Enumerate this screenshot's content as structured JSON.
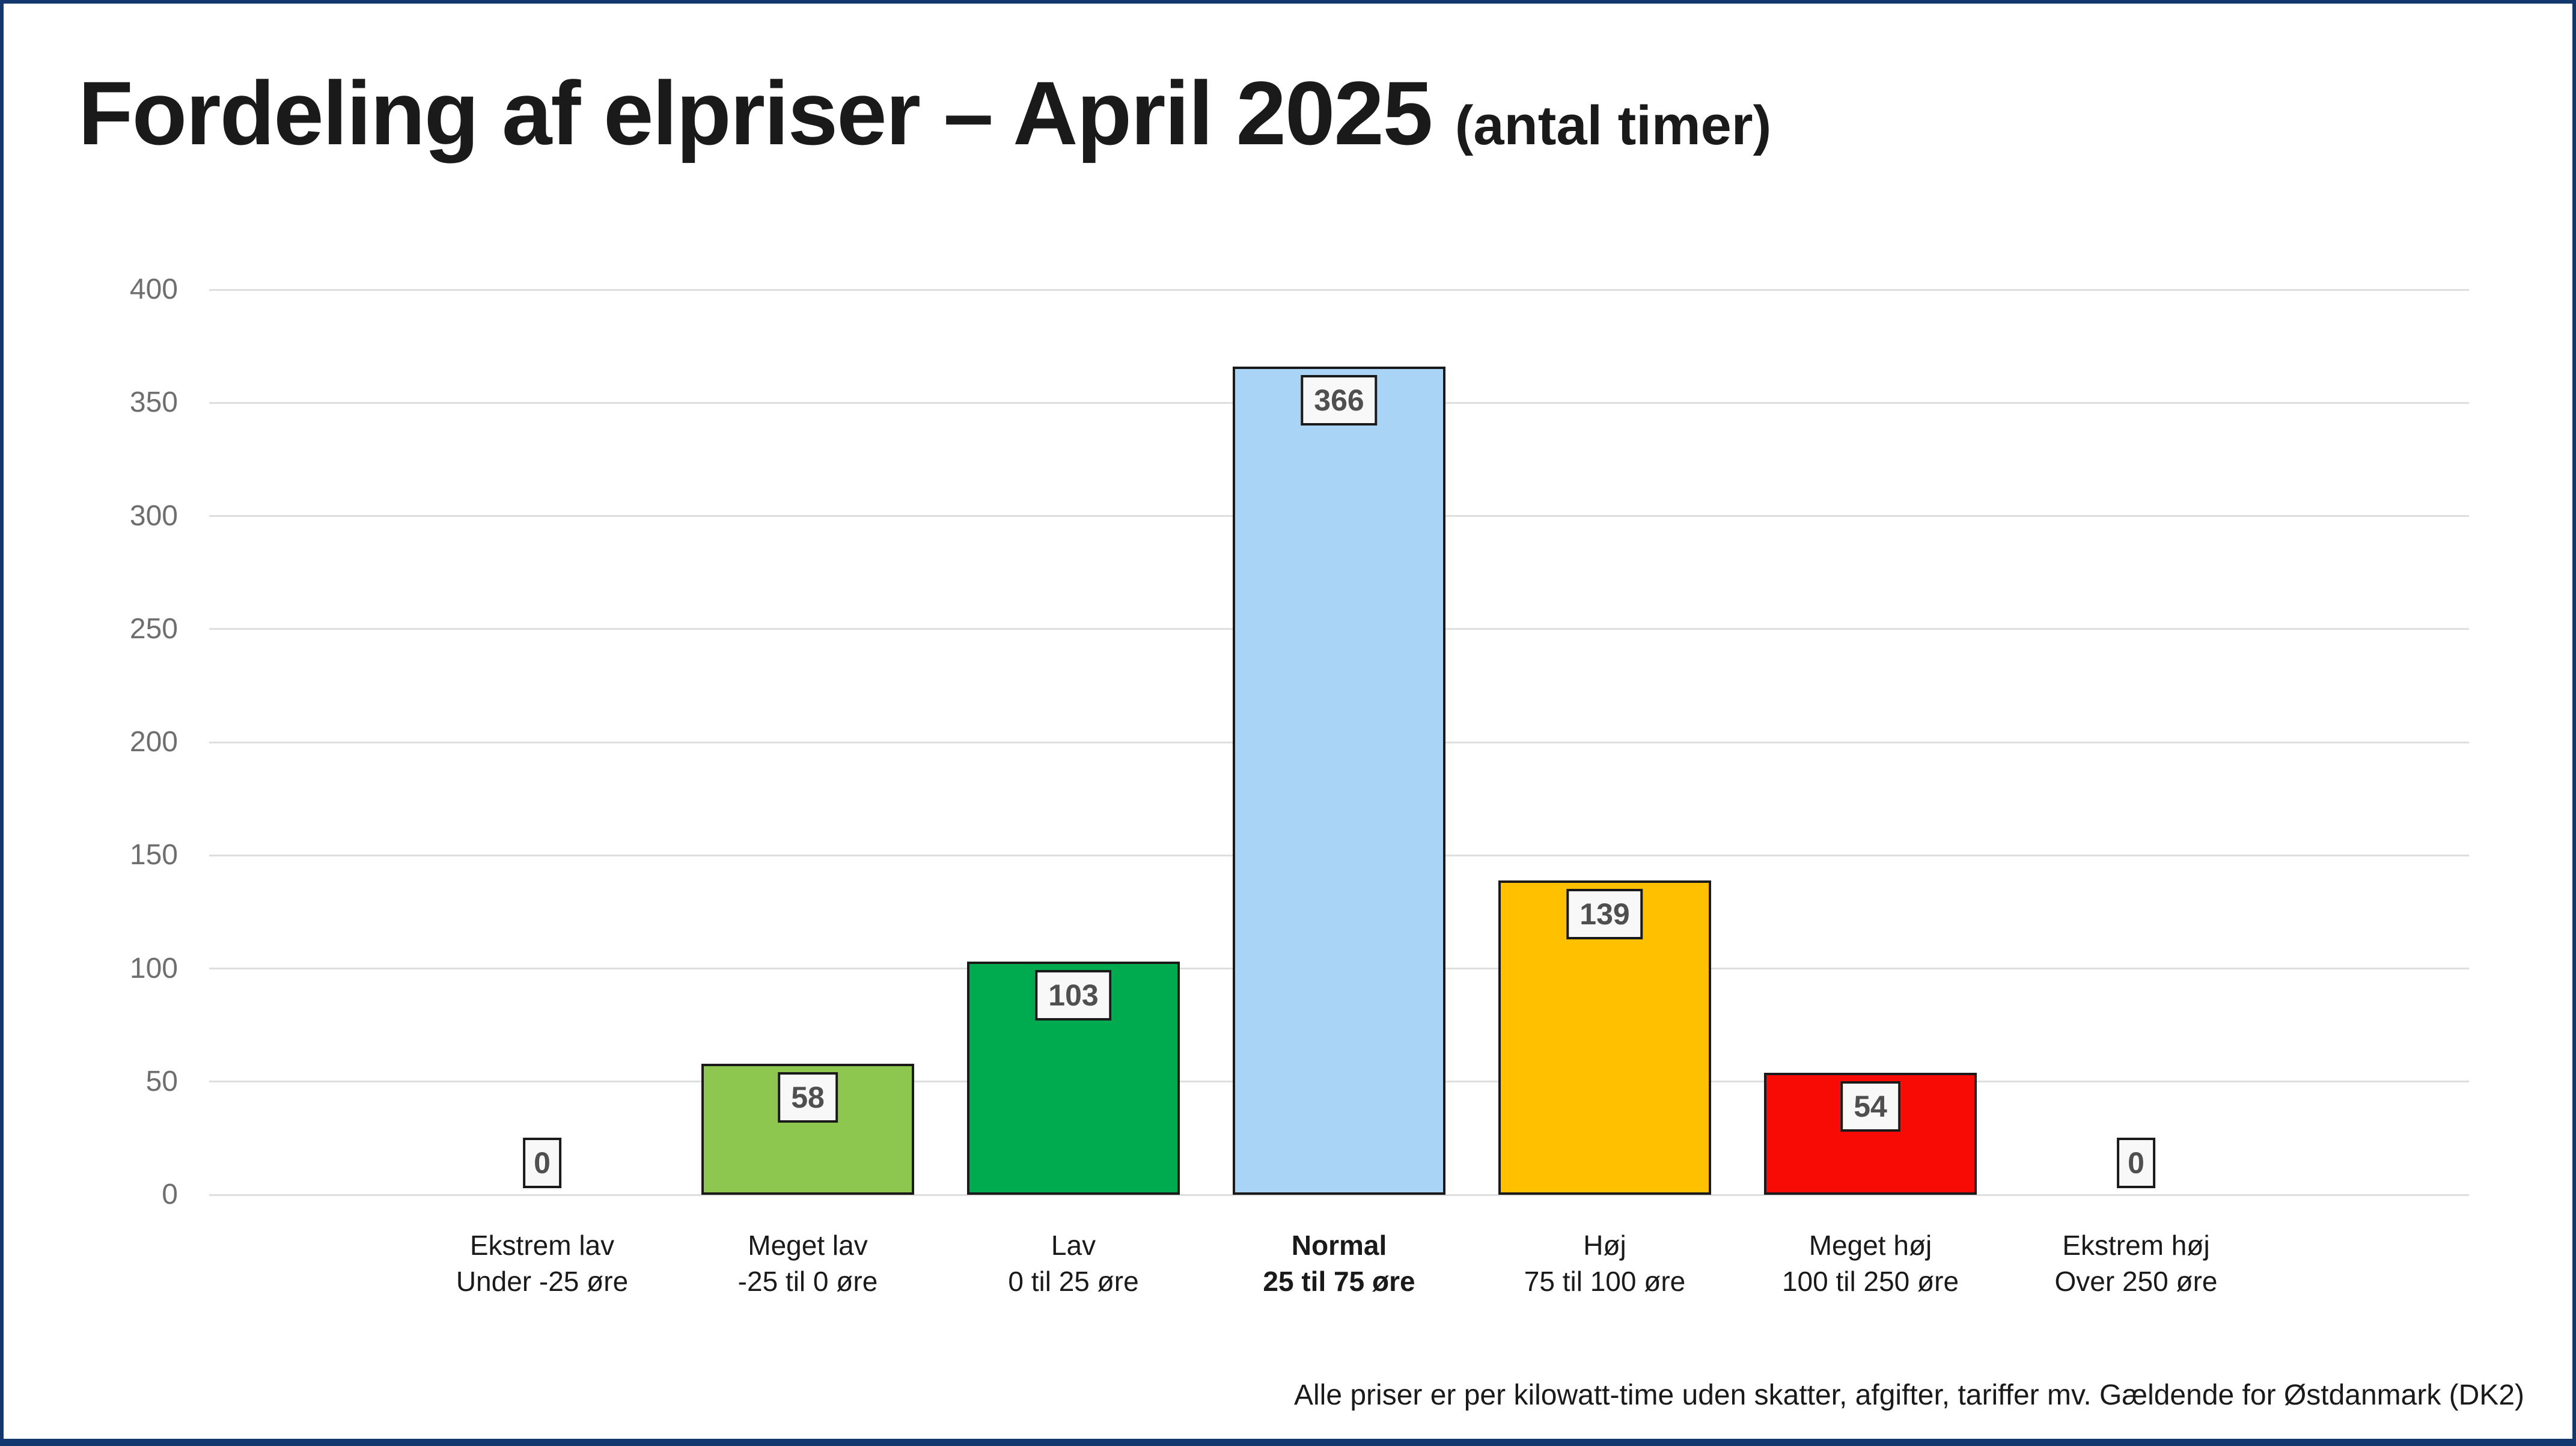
{
  "title": {
    "main": "Fordeling af elpriser – April 2025",
    "suffix": "(antal timer)"
  },
  "footer": {
    "note": "Alle priser er per kilowatt-time uden skatter, afgifter, tariffer mv. Gældende for Østdanmark (DK2)"
  },
  "colors": {
    "frame_border": "#12386E",
    "gridline": "#DEDEDE",
    "ytick_text": "#6E6E6E",
    "label_text": "#1A1A1A",
    "value_chip_bg": "#F8F8F8",
    "value_chip_border": "#1A1A1A",
    "value_chip_text": "#4F4F4F"
  },
  "chart_data": {
    "type": "bar",
    "title": "Fordeling af elpriser – April 2025 (antal timer)",
    "xlabel": "",
    "ylabel": "",
    "ylim": [
      0,
      400
    ],
    "ytick_step": 50,
    "yticks": [
      0,
      50,
      100,
      150,
      200,
      250,
      300,
      350,
      400
    ],
    "grid": true,
    "legend": false,
    "categories": [
      "Ekstrem lav",
      "Meget lav",
      "Lav",
      "Normal",
      "Høj",
      "Meget høj",
      "Ekstrem høj"
    ],
    "category_sublabels": [
      "Under -25 øre",
      "-25 til 0 øre",
      "0 til 25 øre",
      "25 til 75 øre",
      "75 til 100 øre",
      "100 til 250 øre",
      "Over 250 øre"
    ],
    "values": [
      0,
      58,
      103,
      366,
      139,
      54,
      0
    ],
    "bar_colors": [
      null,
      "#8DC74F",
      "#00AB50",
      "#AAD4F6",
      "#FFC000",
      "#F90B05",
      null
    ],
    "emphasized_category_index": 3,
    "value_labels_shown": true
  }
}
